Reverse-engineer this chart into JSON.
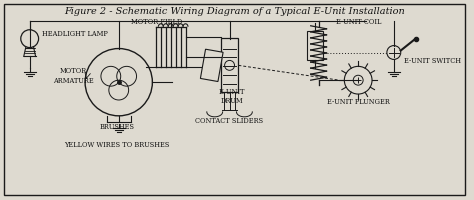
{
  "title": "Figure 2 - Schematic Wiring Diagram of a Typical E-Unit Installation",
  "bg_color": "#dedad0",
  "border_color": "#222222",
  "labels": {
    "headlight_lamp": "HEADLIGHT LAMP",
    "motor_field": "MOTOR FIELD",
    "motor_armature": "MOTOR\nARMATURE",
    "brushes": "BRUSHES",
    "yellow_wires": "YELLOW WIRES TO BRUSHES",
    "e_unit_coil": "E-UNIT COIL",
    "e_unit_drum": "E UNIT\nDRUM",
    "e_unit_plunger": "E-UNIT PLUNGER",
    "e_unit_switch": "E-UNIT SWITCH",
    "contact_sliders": "CONTACT SLIDERS"
  },
  "line_color": "#1a1a1a",
  "text_color": "#111111",
  "font_size_title": 7.0,
  "font_size_label": 4.8
}
